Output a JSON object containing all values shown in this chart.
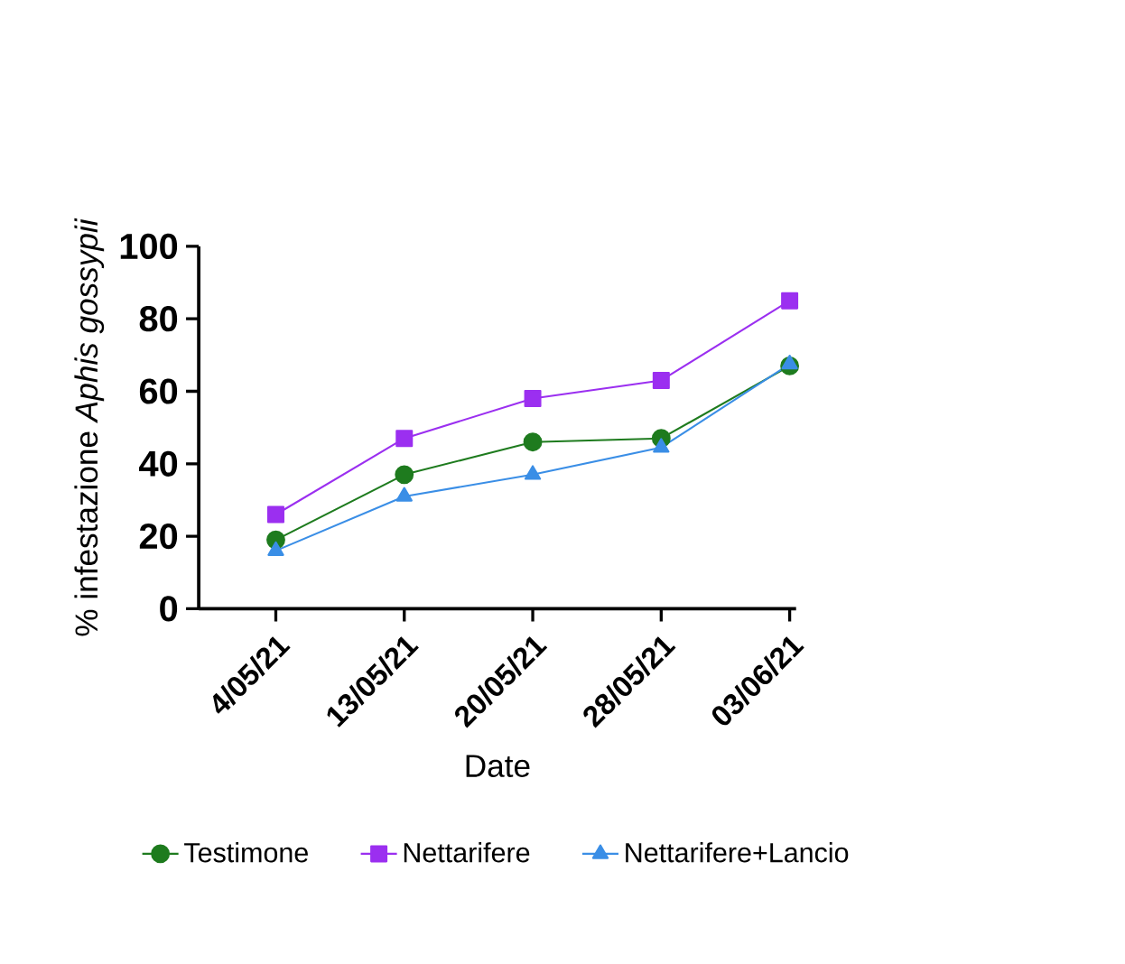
{
  "chart_data": {
    "type": "line",
    "xlabel": "Date",
    "ylabel": "% infestazione *Aphis gossypii*",
    "categories": [
      "4/05/21",
      "13/05/21",
      "20/05/21",
      "28/05/21",
      "03/06/21"
    ],
    "series": [
      {
        "name": "Testimone",
        "color": "#1e7b1e",
        "marker": "circle",
        "values": [
          19,
          37,
          46,
          47,
          67
        ]
      },
      {
        "name": "Nettarifere",
        "color": "#9b2ff0",
        "marker": "square",
        "values": [
          26,
          47,
          58,
          63,
          85
        ]
      },
      {
        "name": "Nettarifere+Lancio",
        "color": "#3a8ee6",
        "marker": "triangle",
        "values": [
          16,
          31,
          37,
          44.5,
          67.5
        ]
      }
    ],
    "ylim": [
      0,
      100
    ],
    "yticks": [
      0,
      20,
      40,
      60,
      80,
      100
    ],
    "grid": false,
    "legend": "bottom"
  }
}
